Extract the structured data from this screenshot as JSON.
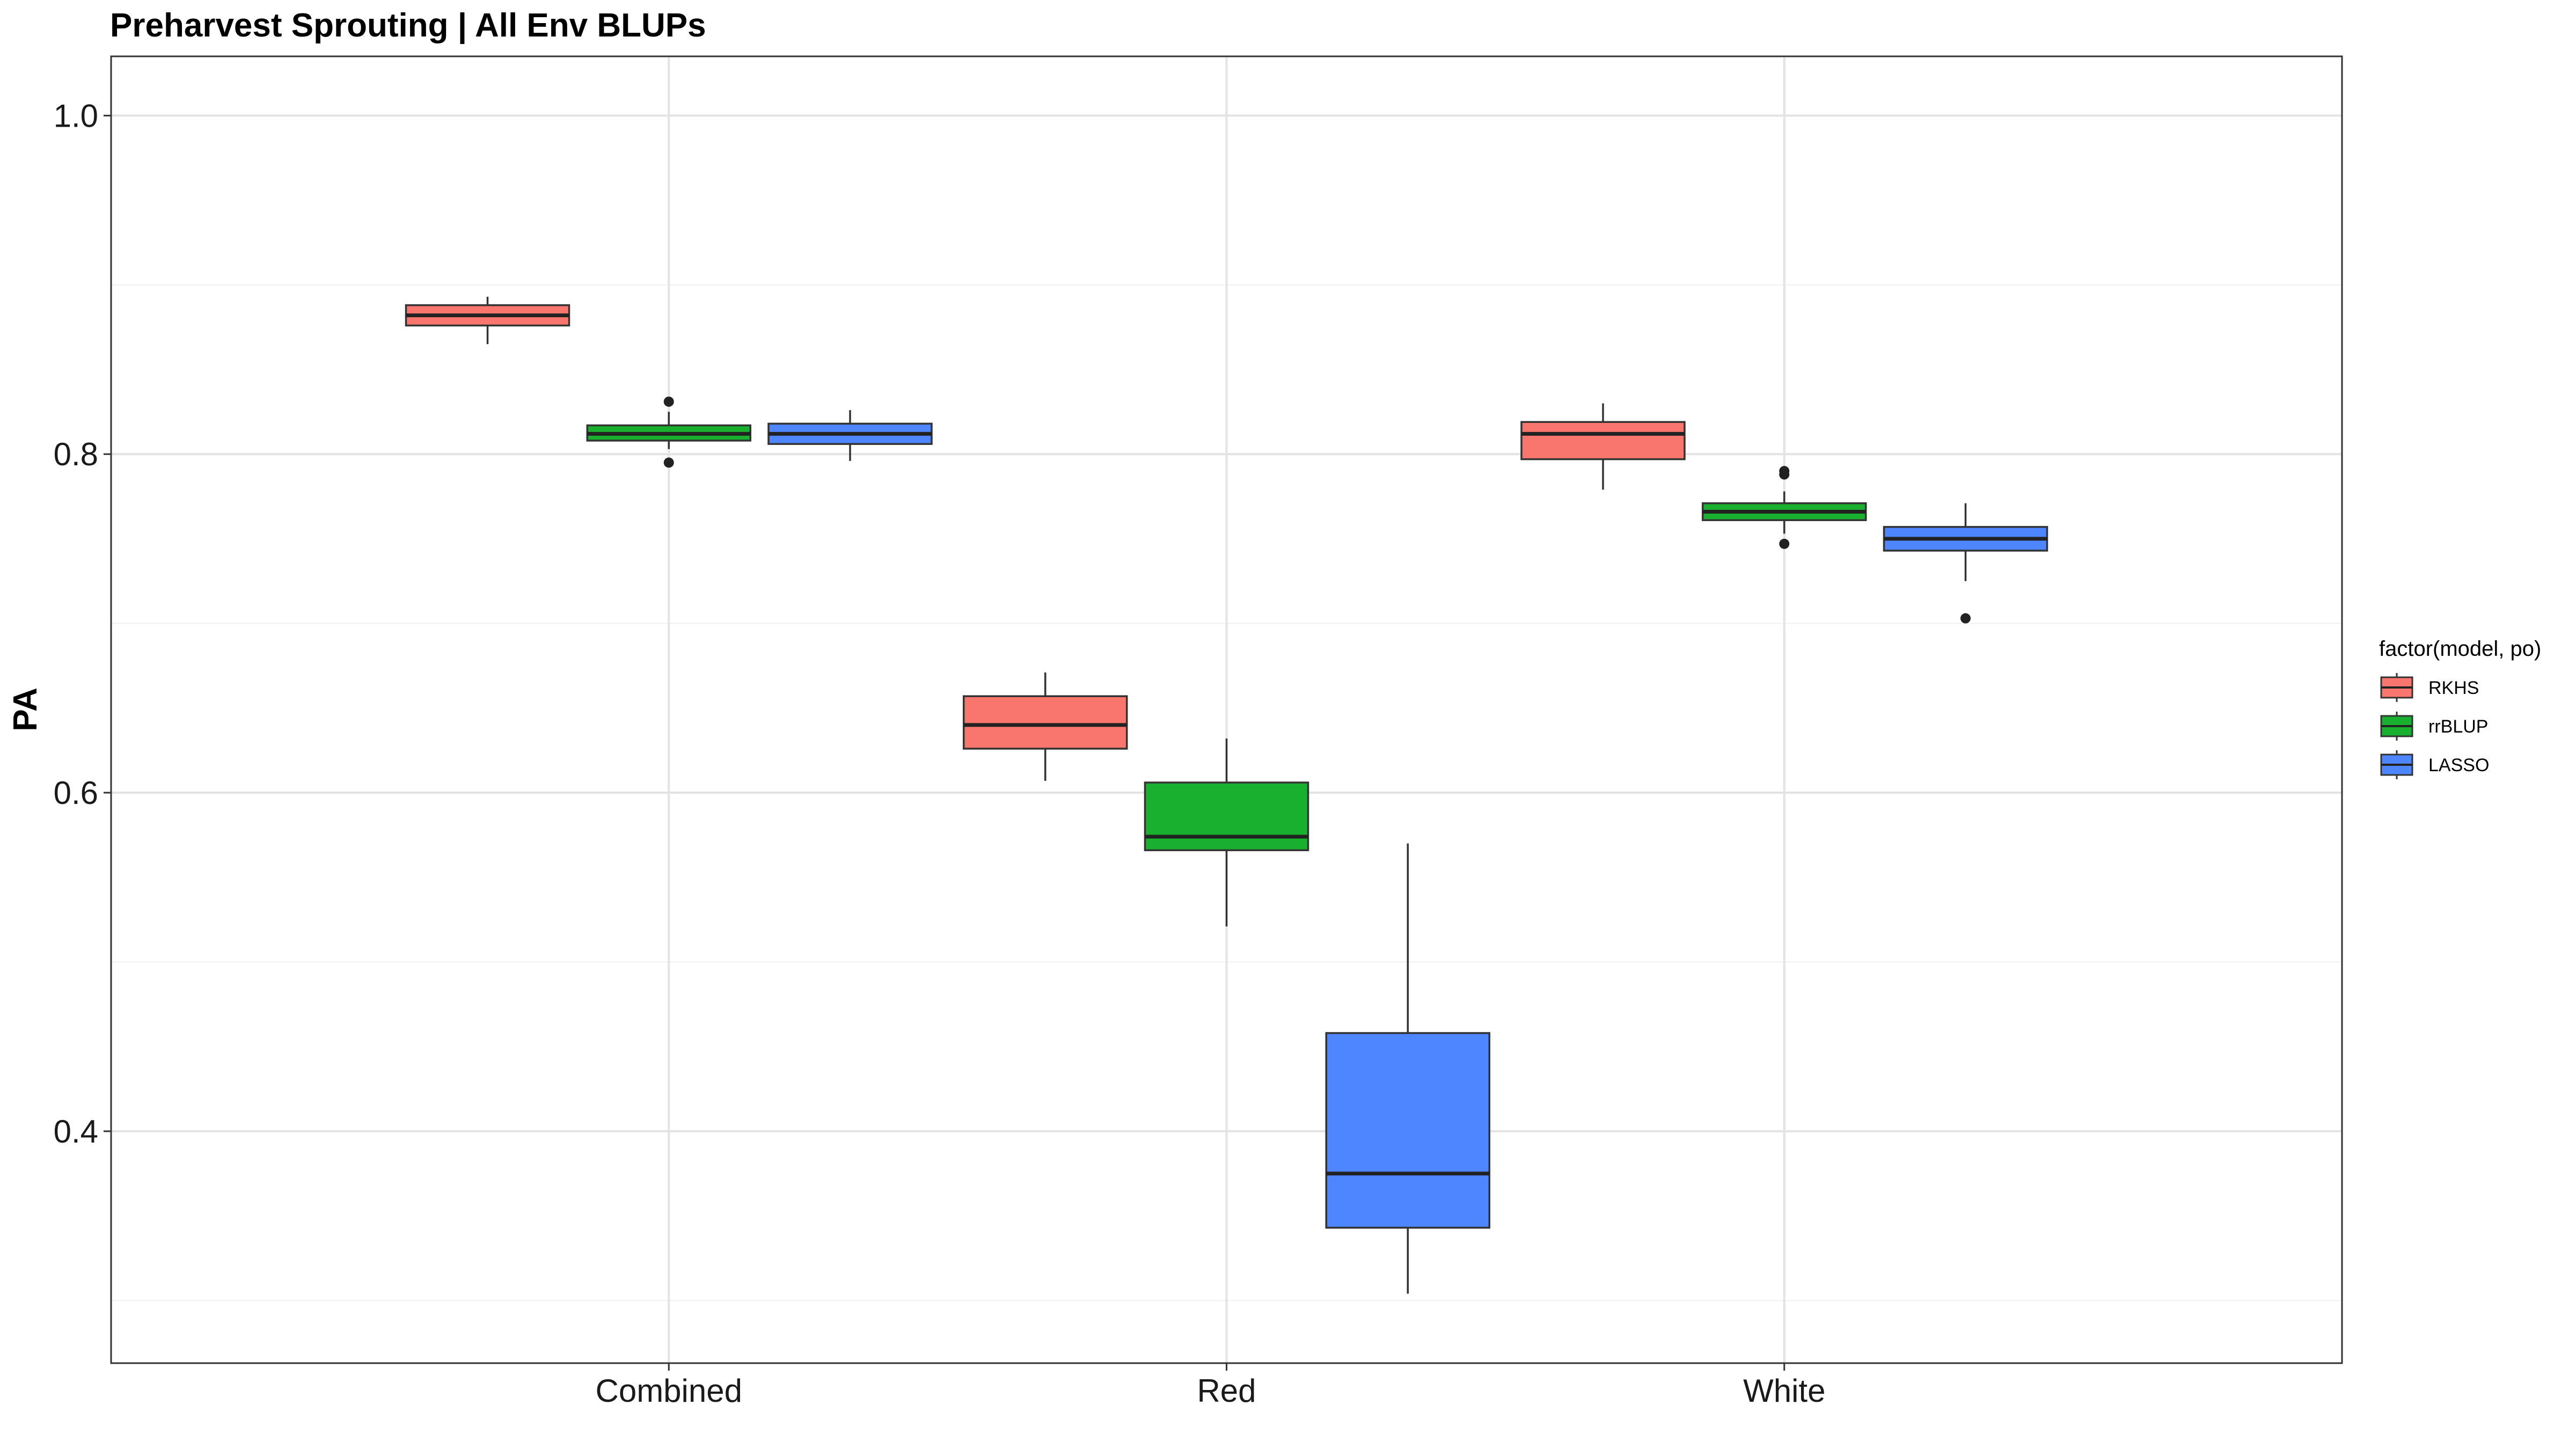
{
  "chart_data": {
    "type": "box",
    "title": "Preharvest Sprouting | All Env BLUPs",
    "xlabel": "",
    "ylabel": "PA",
    "categories": [
      "Combined",
      "Red",
      "White"
    ],
    "ylim": [
      0.263,
      1.035
    ],
    "yticks": [
      0.4,
      0.6,
      0.8,
      1.0
    ],
    "ytick_labels": [
      "0.4",
      "0.6",
      "0.8",
      "1.0"
    ],
    "grid": true,
    "legend": {
      "title": "factor(model, po)",
      "placement": "right",
      "entries": [
        "RKHS",
        "rrBLUP",
        "LASSO"
      ]
    },
    "series": [
      {
        "name": "RKHS",
        "color": "#F8766D",
        "boxes": [
          {
            "category": "Combined",
            "min": 0.865,
            "q1": 0.876,
            "median": 0.882,
            "q3": 0.888,
            "max": 0.893,
            "outliers": []
          },
          {
            "category": "Red",
            "min": 0.607,
            "q1": 0.626,
            "median": 0.64,
            "q3": 0.657,
            "max": 0.671,
            "outliers": []
          },
          {
            "category": "White",
            "min": 0.779,
            "q1": 0.797,
            "median": 0.812,
            "q3": 0.819,
            "max": 0.83,
            "outliers": []
          }
        ]
      },
      {
        "name": "rrBLUP",
        "color": "#1AB02F",
        "boxes": [
          {
            "category": "Combined",
            "min": 0.803,
            "q1": 0.808,
            "median": 0.812,
            "q3": 0.817,
            "max": 0.825,
            "outliers": [
              0.831,
              0.795
            ]
          },
          {
            "category": "Red",
            "min": 0.521,
            "q1": 0.566,
            "median": 0.574,
            "q3": 0.606,
            "max": 0.632,
            "outliers": []
          },
          {
            "category": "White",
            "min": 0.753,
            "q1": 0.761,
            "median": 0.766,
            "q3": 0.771,
            "max": 0.778,
            "outliers": [
              0.79,
              0.788,
              0.747
            ]
          }
        ]
      },
      {
        "name": "LASSO",
        "color": "#4E86FF",
        "boxes": [
          {
            "category": "Combined",
            "min": 0.796,
            "q1": 0.806,
            "median": 0.812,
            "q3": 0.818,
            "max": 0.826,
            "outliers": []
          },
          {
            "category": "Red",
            "min": 0.304,
            "q1": 0.343,
            "median": 0.375,
            "q3": 0.458,
            "max": 0.57,
            "outliers": []
          },
          {
            "category": "White",
            "min": 0.725,
            "q1": 0.743,
            "median": 0.75,
            "q3": 0.757,
            "max": 0.771,
            "outliers": [
              0.703
            ]
          }
        ]
      }
    ]
  }
}
